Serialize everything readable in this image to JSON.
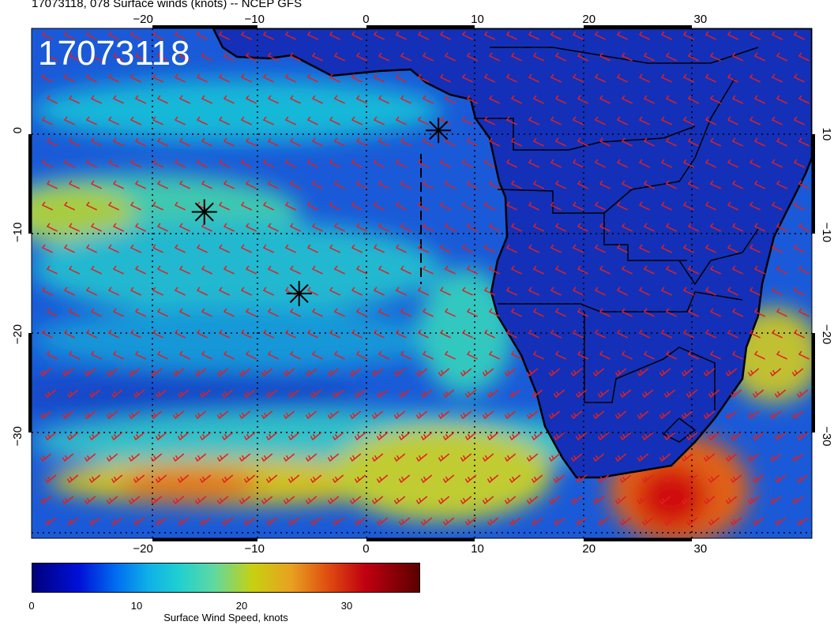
{
  "title": "17073118, 078 Surface winds (knots) -- NCEP GFS",
  "date_stamp": "17073118",
  "map": {
    "lon_range": [
      -30,
      40
    ],
    "lat_range": [
      -40,
      10
    ],
    "lon_ticks": [
      "−20",
      "−10",
      "0",
      "10",
      "20",
      "30"
    ],
    "lat_ticks_left": [
      "0",
      "−10",
      "−20",
      "−30"
    ],
    "lat_ticks_right": [
      "10",
      "−10",
      "−20",
      "−30"
    ],
    "barb_color": "#e02020",
    "markers": [
      {
        "lon": -14.5,
        "lat": -8.0
      },
      {
        "lon": -6.0,
        "lat": -16.0
      },
      {
        "lon": 6.5,
        "lat": 0.0
      }
    ]
  },
  "colorbar": {
    "label": "Surface Wind Speed, knots",
    "ticks": [
      "0",
      "10",
      "20",
      "30"
    ],
    "range": [
      0,
      37
    ]
  }
}
